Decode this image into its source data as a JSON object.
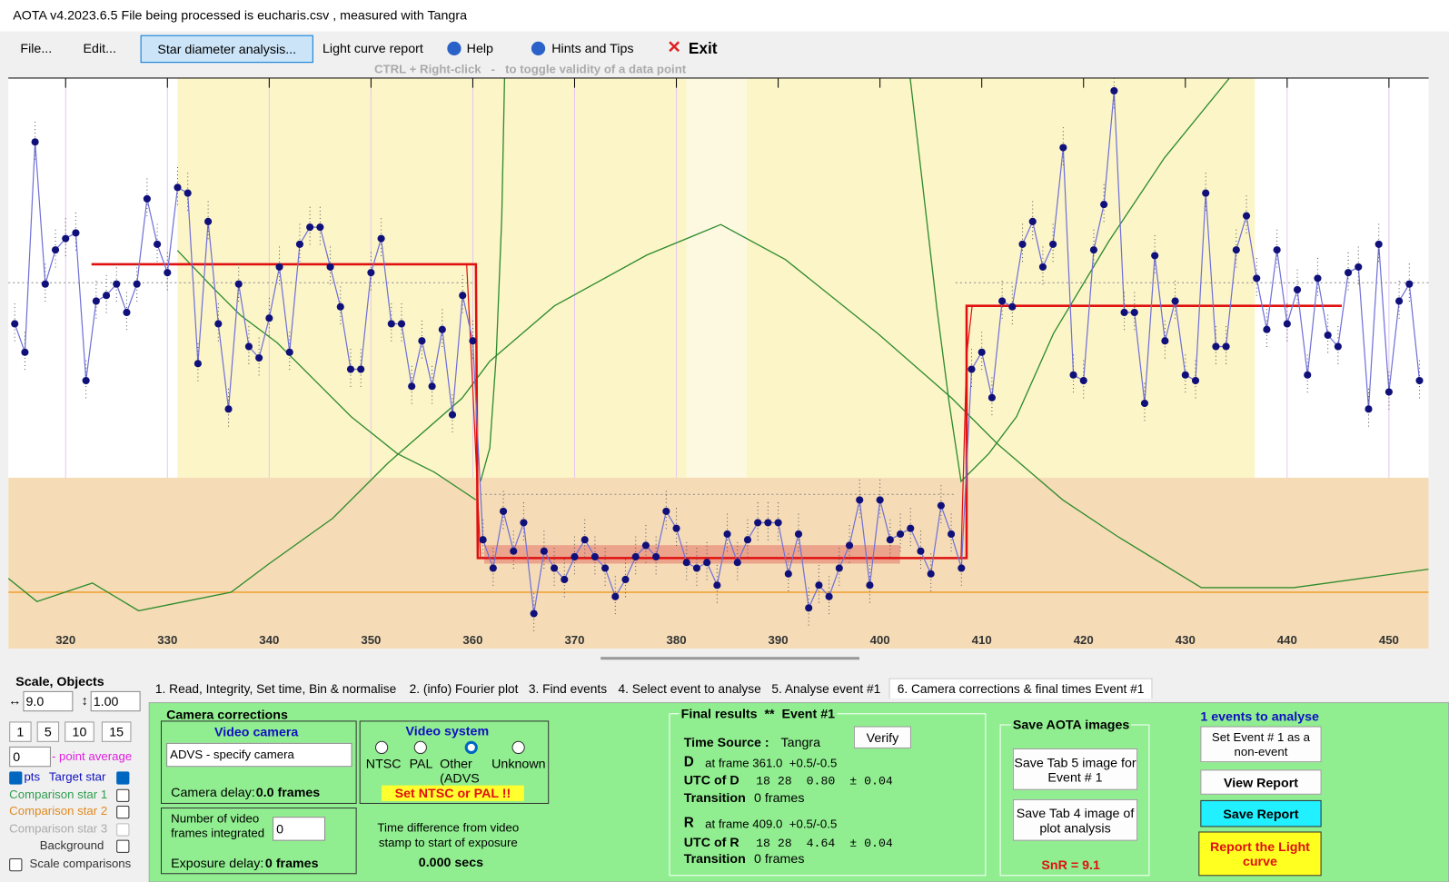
{
  "title_bar": "AOTA v4.2023.6.5   File being processed is  eucharis.csv ,  measured with Tangra",
  "menu": [
    "File...",
    "Edit...",
    "Star diameter analysis...",
    "Light curve report",
    "Help",
    "Hints and Tips",
    "Exit"
  ],
  "hint": "CTRL + Right-click   -   to toggle validity of a data point",
  "chart_data": {
    "type": "scatter",
    "x": [
      315,
      316,
      317,
      318,
      319,
      320,
      321,
      322,
      323,
      324,
      325,
      326,
      327,
      328,
      329,
      330,
      331,
      332,
      333,
      334,
      335,
      336,
      337,
      338,
      339,
      340,
      341,
      342,
      343,
      344,
      345,
      346,
      347,
      348,
      349,
      350,
      351,
      352,
      353,
      354,
      355,
      356,
      357,
      358,
      359,
      360,
      361,
      362,
      363,
      364,
      365,
      366,
      367,
      368,
      369,
      370,
      371,
      372,
      373,
      374,
      375,
      376,
      377,
      378,
      379,
      380,
      381,
      382,
      383,
      384,
      385,
      386,
      387,
      388,
      389,
      390,
      391,
      392,
      393,
      394,
      395,
      396,
      397,
      398,
      399,
      400,
      401,
      402,
      403,
      404,
      405,
      406,
      407,
      408,
      409,
      410,
      411,
      412,
      413,
      414,
      415,
      416,
      417,
      418,
      419,
      420,
      421,
      422,
      423,
      424,
      425,
      426,
      427,
      428,
      429,
      430,
      431,
      432,
      433,
      434,
      435,
      436,
      437,
      438,
      439,
      440,
      441,
      442,
      443,
      444,
      445,
      446,
      447,
      448,
      449,
      450,
      451,
      452,
      453
    ],
    "values": [
      57,
      52,
      89,
      64,
      70,
      72,
      73,
      47,
      61,
      62,
      64,
      59,
      64,
      79,
      71,
      66,
      81,
      80,
      50,
      75,
      57,
      42,
      64,
      53,
      51,
      58,
      67,
      52,
      71,
      74,
      74,
      67,
      60,
      49,
      49,
      66,
      72,
      57,
      57,
      46,
      54,
      46,
      56,
      41,
      62,
      54,
      19,
      14,
      24,
      17,
      22,
      6,
      17,
      14,
      12,
      16,
      19,
      16,
      14,
      9,
      12,
      16,
      18,
      16,
      24,
      21,
      15,
      14,
      15,
      11,
      20,
      15,
      19,
      22,
      22,
      22,
      13,
      20,
      7,
      11,
      9,
      14,
      18,
      26,
      11,
      26,
      19,
      20,
      21,
      17,
      13,
      25,
      20,
      14,
      49,
      52,
      44,
      61,
      60,
      71,
      75,
      67,
      71,
      88,
      48,
      47,
      70,
      78,
      98,
      59,
      59,
      43,
      69,
      54,
      61,
      48,
      47,
      80,
      53,
      53,
      70,
      76,
      65,
      56,
      70,
      57,
      63,
      48,
      65,
      55,
      53,
      66,
      67,
      42,
      71,
      45,
      61,
      64,
      47
    ],
    "color": "#10107a",
    "xlim": [
      314.37,
      453.9
    ],
    "ylim": [
      0,
      100
    ],
    "xticks": [
      320,
      330,
      340,
      350,
      360,
      370,
      380,
      390,
      400,
      410,
      420,
      430,
      440,
      450
    ]
  },
  "left_panel": {
    "scale_label": "Scale,  Objects",
    "scale_value": "9.0",
    "ratio_value": "1.00",
    "buttons": [
      "1",
      "5",
      "10",
      "15"
    ],
    "point_avg_value": "0",
    "point_avg_label": "- point average",
    "pts": "pts",
    "objects": [
      "Target star",
      "Comparison star 1",
      "Comparison star 2",
      "Comparison star 3",
      "Background"
    ],
    "scale_comparisons": "Scale comparisons"
  },
  "tabs": [
    "1.  Read, Integrity, Set time, Bin & normalise",
    "2. (info)  Fourier plot",
    "3. Find events",
    "4. Select event to analyse",
    "5. Analyse event #1",
    "6. Camera corrections & final times Event #1"
  ],
  "camera": {
    "title": "Camera corrections",
    "video_camera": "Video camera",
    "camera_select": "ADVS - specify camera",
    "camera_delay_label": "Camera delay:",
    "camera_delay": "0.0 frames",
    "frames_integrated_label": "Number of video frames integrated",
    "frames_integrated": "0",
    "exposure_delay_label": "Exposure delay:",
    "exposure_delay": "0 frames",
    "video_system": "Video system",
    "options": [
      "NTSC",
      "PAL",
      "Other (ADVS",
      "Unknown"
    ],
    "warning": "Set NTSC or PAL !!",
    "time_diff_label": "Time difference from video stamp to start of exposure",
    "time_diff": "0.000 secs"
  },
  "final": {
    "title": "Final results  **  Event #1",
    "time_source_label": "Time Source :",
    "time_source": "Tangra",
    "verify": "Verify",
    "d": {
      "letter": "D",
      "frame": "at frame 361.0  +0.5/-0.5",
      "utc_label": "UTC of D",
      "utc": "18 28  0.80  ± 0.04",
      "transition_label": "Transition",
      "transition": "0 frames"
    },
    "r": {
      "letter": "R",
      "frame": "at frame 409.0  +0.5/-0.5",
      "utc_label": "UTC of R",
      "utc": "18 28  4.64  ± 0.04",
      "transition_label": "Transition",
      "transition": "0 frames"
    }
  },
  "save": {
    "title": "Save AOTA images",
    "tab5": "Save Tab 5 image for Event # 1",
    "tab4": "Save Tab 4 image of plot analysis",
    "snr": "SnR = 9.1"
  },
  "right": {
    "events": "1 events to analyse",
    "non_event": "Set Event # 1 as a non-event",
    "view": "View Report",
    "save": "Save Report",
    "report": "Report the Light curve"
  }
}
